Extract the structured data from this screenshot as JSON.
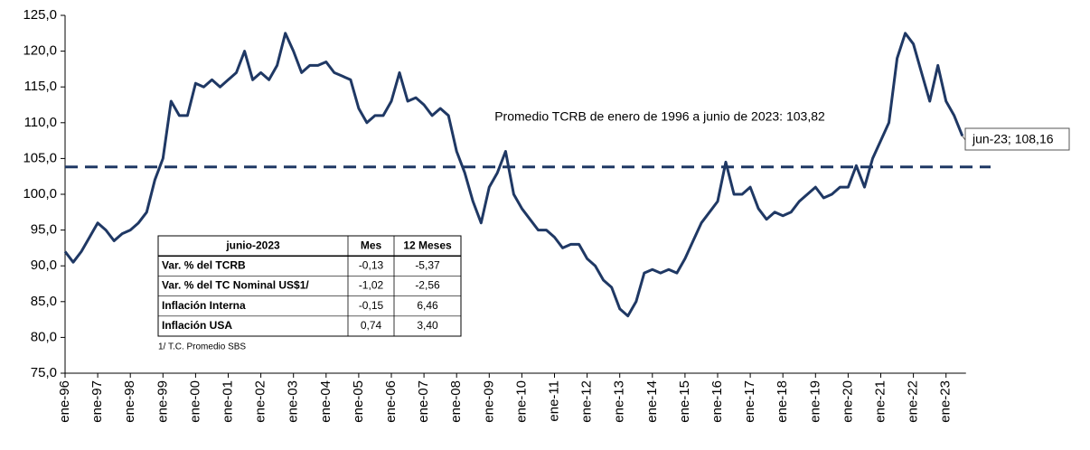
{
  "chart_data": {
    "type": "line",
    "categories": [
      "ene-96",
      null,
      null,
      null,
      "ene-97",
      null,
      null,
      null,
      "ene-98",
      null,
      null,
      null,
      "ene-99",
      null,
      null,
      null,
      "ene-00",
      null,
      null,
      null,
      "ene-01",
      null,
      null,
      null,
      "ene-02",
      null,
      null,
      null,
      "ene-03",
      null,
      null,
      null,
      "ene-04",
      null,
      null,
      null,
      "ene-05",
      null,
      null,
      null,
      "ene-06",
      null,
      null,
      null,
      "ene-07",
      null,
      null,
      null,
      "ene-08",
      null,
      null,
      null,
      "ene-09",
      null,
      null,
      null,
      "ene-10",
      null,
      null,
      null,
      "ene-11",
      null,
      null,
      null,
      "ene-12",
      null,
      null,
      null,
      "ene-13",
      null,
      null,
      null,
      "ene-14",
      null,
      null,
      null,
      "ene-15",
      null,
      null,
      null,
      "ene-16",
      null,
      null,
      null,
      "ene-17",
      null,
      null,
      null,
      "ene-18",
      null,
      null,
      null,
      "ene-19",
      null,
      null,
      null,
      "ene-20",
      null,
      null,
      null,
      "ene-21",
      null,
      null,
      null,
      "ene-22",
      null,
      null,
      null,
      "ene-23",
      null,
      null
    ],
    "series": [
      {
        "color": "#1f3864",
        "values": [
          92,
          90.5,
          92,
          94,
          96,
          95,
          93.5,
          94.5,
          95,
          96,
          97.5,
          102,
          105,
          113,
          111,
          111,
          115.5,
          115,
          116,
          115,
          116,
          117,
          120,
          116,
          117,
          116,
          118,
          122.5,
          120,
          117,
          118,
          118,
          118.5,
          117,
          116.5,
          116,
          112,
          110,
          111,
          111,
          113,
          117,
          113,
          113.5,
          112.5,
          111,
          112,
          111,
          106,
          103,
          99,
          96,
          101,
          103,
          106,
          100,
          98,
          96.5,
          95,
          95,
          94,
          92.5,
          93,
          93,
          91,
          90,
          88,
          87,
          84,
          83,
          85,
          89,
          89.5,
          89,
          89.5,
          89,
          91,
          93.5,
          96,
          97.5,
          99,
          104.5,
          100,
          100,
          101,
          98,
          96.5,
          97.5,
          97,
          97.5,
          99,
          100,
          101,
          99.5,
          100,
          101,
          101,
          104,
          101,
          105,
          107.5,
          110,
          119,
          122.5,
          121,
          117,
          113,
          118,
          113,
          111,
          108.16
        ]
      }
    ],
    "ylim": [
      75,
      125
    ],
    "yticks": [
      {
        "value": 75,
        "label": "75,0"
      },
      {
        "value": 80,
        "label": "80,0"
      },
      {
        "value": 85,
        "label": "85,0"
      },
      {
        "value": 90,
        "label": "90,0"
      },
      {
        "value": 95,
        "label": "95,0"
      },
      {
        "value": 100,
        "label": "100,0"
      },
      {
        "value": 105,
        "label": "105,0"
      },
      {
        "value": 110,
        "label": "110,0"
      },
      {
        "value": 115,
        "label": "115,0"
      },
      {
        "value": 120,
        "label": "120,0"
      },
      {
        "value": 125,
        "label": "125,0"
      }
    ],
    "average": {
      "value": 103.82,
      "color": "#1f3864",
      "label": "Promedio TCRB de enero de 1996 a junio de 2023: 103,82"
    },
    "last_label": "jun-23;  108,16"
  },
  "table": {
    "header": [
      "junio-2023",
      "Mes",
      "12 Meses"
    ],
    "rows": [
      [
        "Var. % del TCRB",
        "-0,13",
        "-5,37"
      ],
      [
        "Var. % del TC Nominal US$1/",
        "-1,02",
        "-2,56"
      ],
      [
        "Inflación Interna",
        "-0,15",
        "6,46"
      ],
      [
        "Inflación USA",
        "0,74",
        "3,40"
      ]
    ],
    "footnote": "1/ T.C. Promedio SBS"
  }
}
